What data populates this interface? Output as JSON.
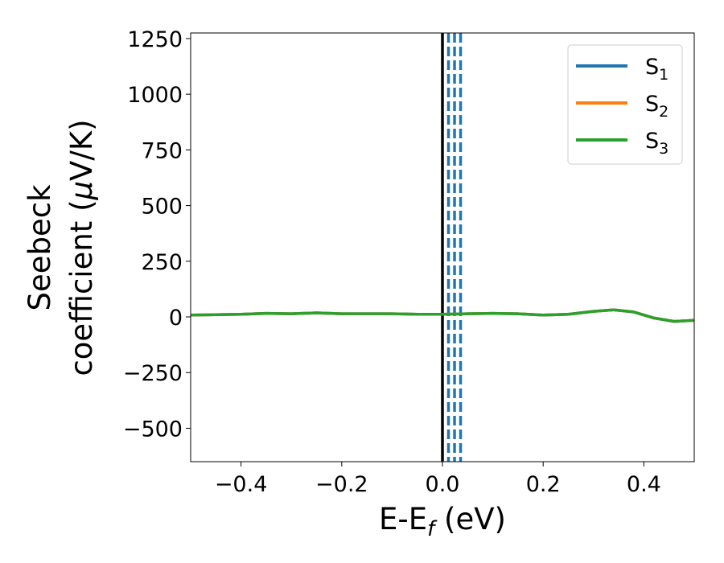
{
  "chart_data": {
    "type": "line",
    "title": "",
    "xlabel": "E-E",
    "xlabel_sub": "f",
    "xlabel_unit": " (eV)",
    "ylabel_line1": "Seebeck",
    "ylabel_line2": "coefficient  (",
    "ylabel_mu": "μ",
    "ylabel_unit": "V/K)",
    "xlim": [
      -0.5,
      0.5
    ],
    "ylim": [
      -650,
      1275
    ],
    "xticks": [
      -0.4,
      -0.2,
      0.0,
      0.2,
      0.4
    ],
    "xtick_labels": [
      "−0.4",
      "−0.2",
      "0.0",
      "0.2",
      "0.4"
    ],
    "yticks": [
      -500,
      -250,
      0,
      250,
      500,
      750,
      1000,
      1250
    ],
    "ytick_labels": [
      "−500",
      "−250",
      "0",
      "250",
      "500",
      "750",
      "1000",
      "1250"
    ],
    "grid": false,
    "legend_position": "top-right",
    "series": [
      {
        "name": "S",
        "name_sub": "1",
        "color": "#1f77b4",
        "x": [
          -0.5,
          -0.45,
          -0.4,
          -0.35,
          -0.3,
          -0.25,
          -0.2,
          -0.15,
          -0.1,
          -0.05,
          0.0,
          0.05,
          0.1,
          0.15,
          0.2,
          0.25,
          0.3,
          0.34,
          0.38,
          0.42,
          0.46,
          0.5
        ],
        "y": [
          8,
          10,
          12,
          16,
          14,
          18,
          14,
          14,
          14,
          12,
          12,
          14,
          16,
          14,
          8,
          12,
          25,
          32,
          22,
          -5,
          -20,
          -15
        ]
      },
      {
        "name": "S",
        "name_sub": "2",
        "color": "#ff7f0e",
        "x": [
          -0.5,
          -0.45,
          -0.4,
          -0.35,
          -0.3,
          -0.25,
          -0.2,
          -0.15,
          -0.1,
          -0.05,
          0.0,
          0.05,
          0.1,
          0.15,
          0.2,
          0.25,
          0.3,
          0.34,
          0.38,
          0.42,
          0.46,
          0.5
        ],
        "y": [
          8,
          10,
          12,
          16,
          14,
          18,
          14,
          14,
          14,
          12,
          12,
          14,
          16,
          14,
          8,
          12,
          25,
          32,
          22,
          -5,
          -20,
          -15
        ]
      },
      {
        "name": "S",
        "name_sub": "3",
        "color": "#2ca02c",
        "x": [
          -0.5,
          -0.45,
          -0.4,
          -0.35,
          -0.3,
          -0.25,
          -0.2,
          -0.15,
          -0.1,
          -0.05,
          0.0,
          0.05,
          0.1,
          0.15,
          0.2,
          0.25,
          0.3,
          0.34,
          0.38,
          0.42,
          0.46,
          0.5
        ],
        "y": [
          8,
          10,
          12,
          16,
          14,
          18,
          14,
          14,
          14,
          12,
          12,
          14,
          16,
          14,
          8,
          12,
          25,
          32,
          22,
          -5,
          -20,
          -15
        ]
      }
    ],
    "vlines": [
      {
        "x": 0.0,
        "color": "#000000",
        "style": "solid"
      },
      {
        "x": 0.012,
        "color": "#1f77b4",
        "style": "dashed"
      },
      {
        "x": 0.024,
        "color": "#1f77b4",
        "style": "dashed"
      },
      {
        "x": 0.036,
        "color": "#1f77b4",
        "style": "dashed"
      }
    ]
  }
}
